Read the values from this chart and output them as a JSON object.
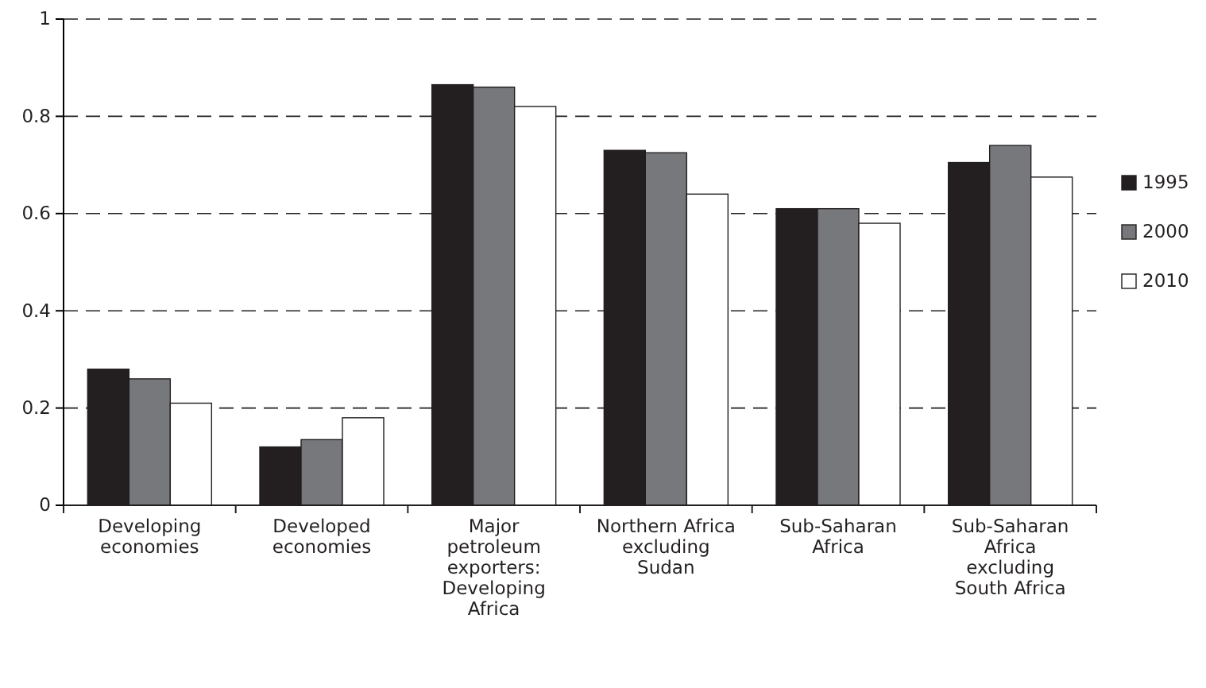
{
  "chart_data": {
    "type": "bar",
    "categories": [
      "Developing economies",
      "Developed economies",
      "Major petroleum exporters: Developing Africa",
      "Northern Africa excluding Sudan",
      "Sub-Saharan Africa",
      "Sub-Saharan Africa excluding South Africa"
    ],
    "series": [
      {
        "name": "1995",
        "color": "#231f20",
        "values": [
          0.28,
          0.12,
          0.865,
          0.73,
          0.61,
          0.705
        ]
      },
      {
        "name": "2000",
        "color": "#77787b",
        "values": [
          0.26,
          0.135,
          0.86,
          0.725,
          0.61,
          0.74
        ]
      },
      {
        "name": "2010",
        "color": "#ffffff",
        "values": [
          0.21,
          0.18,
          0.82,
          0.64,
          0.58,
          0.675
        ]
      }
    ],
    "ylim": [
      0,
      1
    ],
    "yticks": [
      0,
      0.2,
      0.4,
      0.6,
      0.8,
      1
    ],
    "grid": "y",
    "legend": "right"
  }
}
